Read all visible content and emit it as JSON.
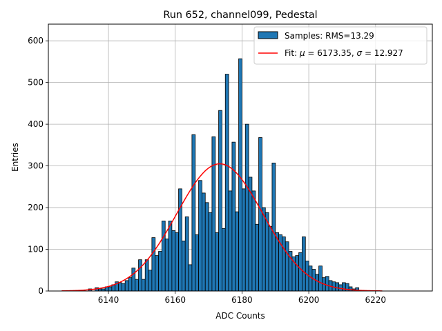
{
  "chart_data": {
    "type": "bar",
    "title": "Run 652, channel099, Pedestal",
    "xlabel": "ADC Counts",
    "ylabel": "Entries",
    "xlim": [
      6122,
      6237
    ],
    "ylim": [
      0,
      640
    ],
    "xticks": [
      6140,
      6160,
      6180,
      6200,
      6220
    ],
    "yticks": [
      0,
      100,
      200,
      300,
      400,
      500,
      600
    ],
    "grid": true,
    "legend_position": "top-right",
    "histogram": {
      "name": "Samples: RMS=13.29",
      "color": "#1f77b4",
      "edgecolor": "#000000",
      "bin_start": 6126,
      "bin_width": 1,
      "counts": [
        0,
        0,
        0,
        0,
        0,
        0,
        2,
        0,
        5,
        0,
        8,
        5,
        5,
        10,
        10,
        15,
        22,
        20,
        18,
        25,
        32,
        55,
        28,
        75,
        28,
        75,
        50,
        128,
        85,
        95,
        168,
        125,
        168,
        145,
        140,
        245,
        120,
        178,
        63,
        375,
        135,
        265,
        235,
        212,
        188,
        370,
        140,
        433,
        150,
        520,
        240,
        357,
        190,
        557,
        245,
        400,
        273,
        240,
        160,
        368,
        200,
        188,
        155,
        307,
        140,
        135,
        130,
        118,
        95,
        82,
        85,
        92,
        130,
        72,
        60,
        52,
        40,
        60,
        32,
        35,
        25,
        22,
        20,
        15,
        20,
        18,
        10,
        5,
        8,
        0,
        0,
        0,
        0,
        0,
        0,
        0,
        0
      ]
    },
    "fit": {
      "name_prefix": "Fit: ",
      "mu_symbol": "μ",
      "mu_text": " = 6173.35, ",
      "sigma_symbol": "σ",
      "sigma_text": " = 12.927",
      "mu": 6173.35,
      "sigma": 12.927,
      "amplitude": 305,
      "x_range": [
        6126,
        6222
      ],
      "color": "#ff0000"
    }
  }
}
